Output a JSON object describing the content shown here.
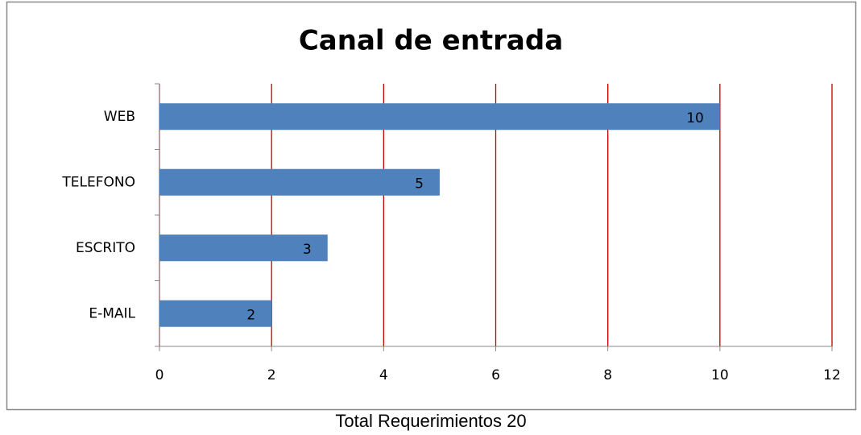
{
  "chart_data": {
    "type": "barh",
    "title": "Canal de entrada",
    "categories": [
      "WEB",
      "TELEFONO",
      "ESCRITO",
      "E-MAIL"
    ],
    "values": [
      10,
      5,
      3,
      2
    ],
    "color": "#4f81bd",
    "xlim": [
      0,
      12
    ],
    "xticks": [
      0,
      2,
      4,
      6,
      8,
      10,
      12
    ],
    "grid": true,
    "grid_color": "#c00000"
  },
  "caption": "Total Requerimientos 20"
}
